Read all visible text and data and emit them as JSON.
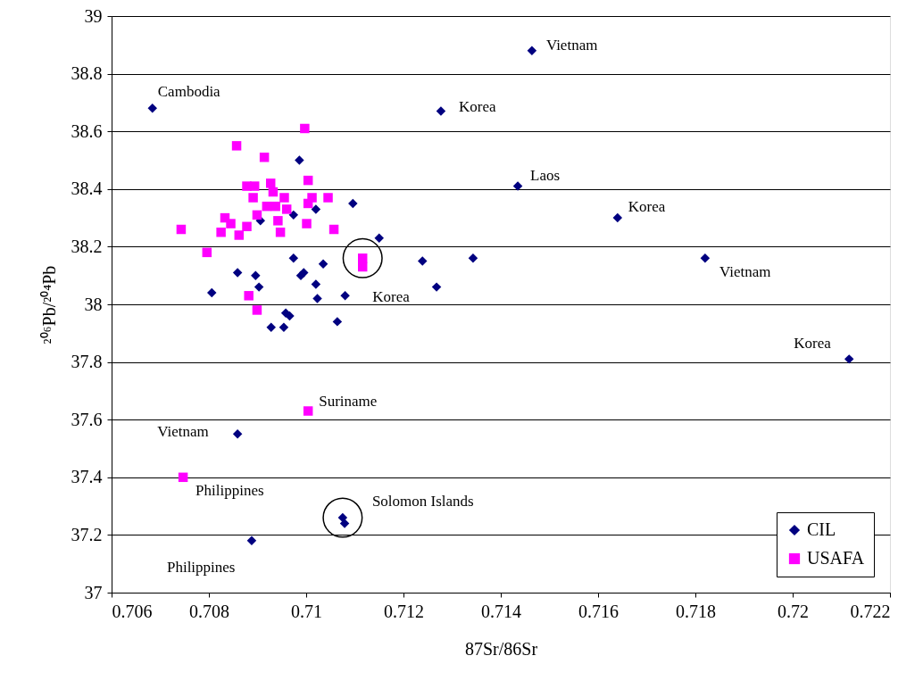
{
  "chart_data": {
    "type": "scatter",
    "xlabel": "87Sr/86Sr",
    "ylabel": "²⁰⁶Pb/²⁰⁴Pb",
    "xlim": [
      0.706,
      0.722
    ],
    "xticks": [
      0.706,
      0.708,
      0.71,
      0.712,
      0.714,
      0.716,
      0.718,
      0.72,
      0.722
    ],
    "ylim": [
      37,
      39
    ],
    "yticks": [
      37,
      37.2,
      37.4,
      37.6,
      37.8,
      38,
      38.2,
      38.4,
      38.6,
      38.8,
      39
    ],
    "grid": "y",
    "legend": "bottom right",
    "series": [
      {
        "name": "CIL",
        "color": "#000080",
        "marker": "diamond",
        "x": [
          0.70684,
          0.71464,
          0.71277,
          0.71435,
          0.7164,
          0.7182,
          0.72116,
          0.70859,
          0.71075,
          0.71079,
          0.70888,
          0.70986,
          0.70906,
          0.70974,
          0.7102,
          0.71096,
          0.7115,
          0.70974,
          0.71035,
          0.70995,
          0.70989,
          0.70859,
          0.70896,
          0.70903,
          0.70806,
          0.7102,
          0.71023,
          0.7108,
          0.70958,
          0.70966,
          0.70928,
          0.70954,
          0.71064,
          0.71239,
          0.71343,
          0.71268
        ],
        "values": [
          38.68,
          38.88,
          38.67,
          38.41,
          38.3,
          38.16,
          37.81,
          37.55,
          37.26,
          37.24,
          37.18,
          38.5,
          38.29,
          38.31,
          38.33,
          38.35,
          38.23,
          38.16,
          38.14,
          38.11,
          38.1,
          38.11,
          38.1,
          38.06,
          38.04,
          38.07,
          38.02,
          38.03,
          37.97,
          37.96,
          37.92,
          37.92,
          37.94,
          38.15,
          38.16,
          38.06
        ]
      },
      {
        "name": "USAFA",
        "color": "#ff00ff",
        "marker": "square",
        "x": [
          0.70747,
          0.71004,
          0.71116,
          0.71116,
          0.70997,
          0.70857,
          0.70914,
          0.71004,
          0.70878,
          0.70894,
          0.70927,
          0.70891,
          0.70932,
          0.70955,
          0.71012,
          0.71045,
          0.71004,
          0.70919,
          0.70937,
          0.7096,
          0.70899,
          0.70833,
          0.70845,
          0.70878,
          0.70942,
          0.71001,
          0.70743,
          0.70825,
          0.70862,
          0.70947,
          0.71057,
          0.70796,
          0.70882,
          0.70899
        ],
        "values": [
          37.4,
          37.63,
          38.16,
          38.13,
          38.61,
          38.55,
          38.51,
          38.43,
          38.41,
          38.41,
          38.42,
          38.37,
          38.39,
          38.37,
          38.37,
          38.37,
          38.35,
          38.34,
          38.34,
          38.33,
          38.31,
          38.3,
          38.28,
          38.27,
          38.29,
          38.28,
          38.26,
          38.25,
          38.24,
          38.25,
          38.26,
          38.18,
          38.03,
          37.98
        ]
      }
    ],
    "annotations": [
      {
        "text": "Vietnam",
        "x": 0.71464,
        "y": 38.88
      },
      {
        "text": "Cambodia",
        "x": 0.70684,
        "y": 38.68
      },
      {
        "text": "Korea",
        "x": 0.71277,
        "y": 38.67
      },
      {
        "text": "Laos",
        "x": 0.71435,
        "y": 38.41
      },
      {
        "text": "Korea",
        "x": 0.7164,
        "y": 38.3
      },
      {
        "text": "Vietnam",
        "x": 0.7182,
        "y": 38.16
      },
      {
        "text": "Korea",
        "x": 0.72116,
        "y": 37.81
      },
      {
        "text": "Korea",
        "x": 0.71116,
        "y": 38.16
      },
      {
        "text": "Suriname",
        "x": 0.71004,
        "y": 37.63
      },
      {
        "text": "Vietnam",
        "x": 0.70859,
        "y": 37.55
      },
      {
        "text": "Philippines",
        "x": 0.70747,
        "y": 37.4
      },
      {
        "text": "Solomon Islands",
        "x": 0.71075,
        "y": 37.26
      },
      {
        "text": "Philippines",
        "x": 0.70888,
        "y": 37.18
      }
    ]
  }
}
